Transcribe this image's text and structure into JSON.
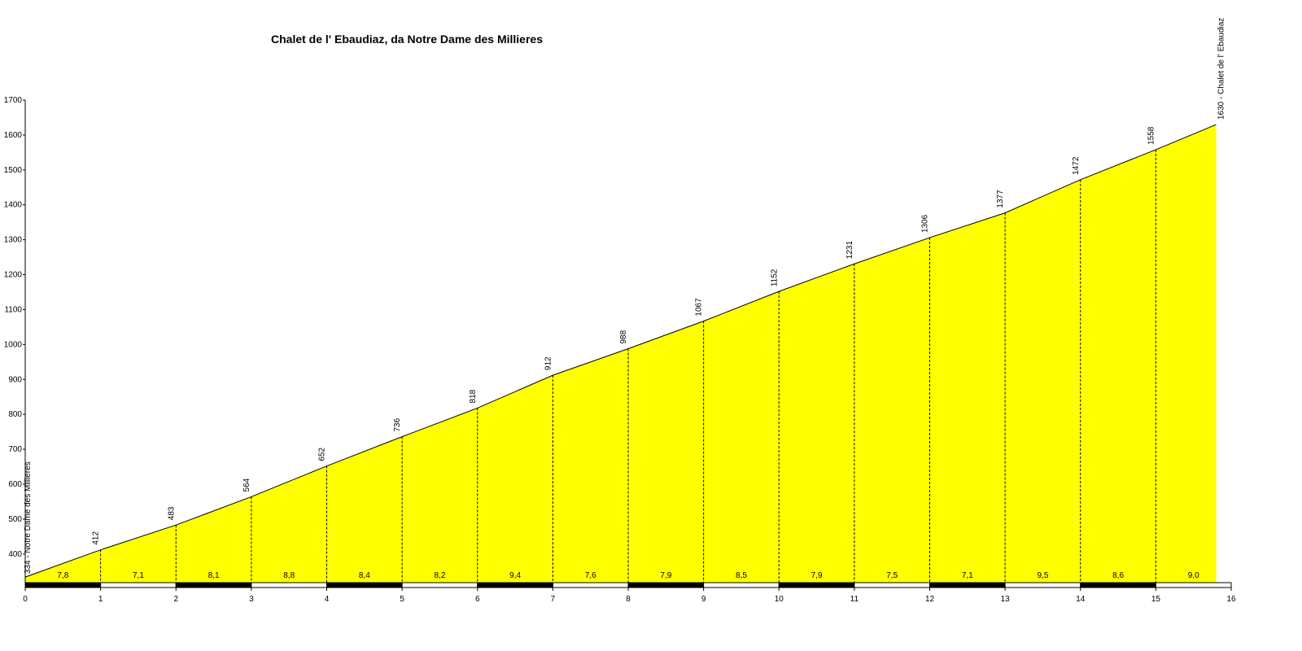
{
  "chart_data": {
    "type": "area",
    "title": "Chalet de l' Ebaudiaz, da Notre Dame des Millieres",
    "x": [
      0,
      1,
      2,
      3,
      4,
      5,
      6,
      7,
      8,
      9,
      10,
      11,
      12,
      13,
      14,
      15,
      15.8
    ],
    "values": [
      334,
      412,
      483,
      564,
      652,
      736,
      818,
      912,
      988,
      1067,
      1152,
      1231,
      1306,
      1377,
      1472,
      1558,
      1630
    ],
    "value_labels": [
      "334 - Notre Dame des Millieres",
      "412",
      "483",
      "564",
      "652",
      "736",
      "818",
      "912",
      "988",
      "1067",
      "1152",
      "1231",
      "1306",
      "1377",
      "1472",
      "1558",
      "1630 - Chalet de l' Ebaudiaz"
    ],
    "color": "#ffff00",
    "gradients": {
      "values": [
        7.8,
        7.1,
        8.1,
        8.8,
        8.4,
        8.2,
        9.4,
        7.6,
        7.9,
        8.5,
        7.9,
        7.5,
        7.1,
        9.5,
        8.6,
        9.0
      ],
      "value_labels": [
        "7,8",
        "7,1",
        "8,1",
        "8,8",
        "8,4",
        "8,2",
        "9,4",
        "7,6",
        "7,9",
        "8,5",
        "7,9",
        "7,5",
        "7,1",
        "9,5",
        "8,6",
        "9,0"
      ]
    },
    "xlim": [
      0,
      16
    ],
    "xticks": [
      0,
      1,
      2,
      3,
      4,
      5,
      6,
      7,
      8,
      9,
      10,
      11,
      12,
      13,
      14,
      15,
      16
    ],
    "ylim": [
      318,
      1700
    ],
    "yticks": [
      400,
      500,
      600,
      700,
      800,
      900,
      1000,
      1100,
      1200,
      1300,
      1400,
      1500,
      1600,
      1700
    ]
  }
}
